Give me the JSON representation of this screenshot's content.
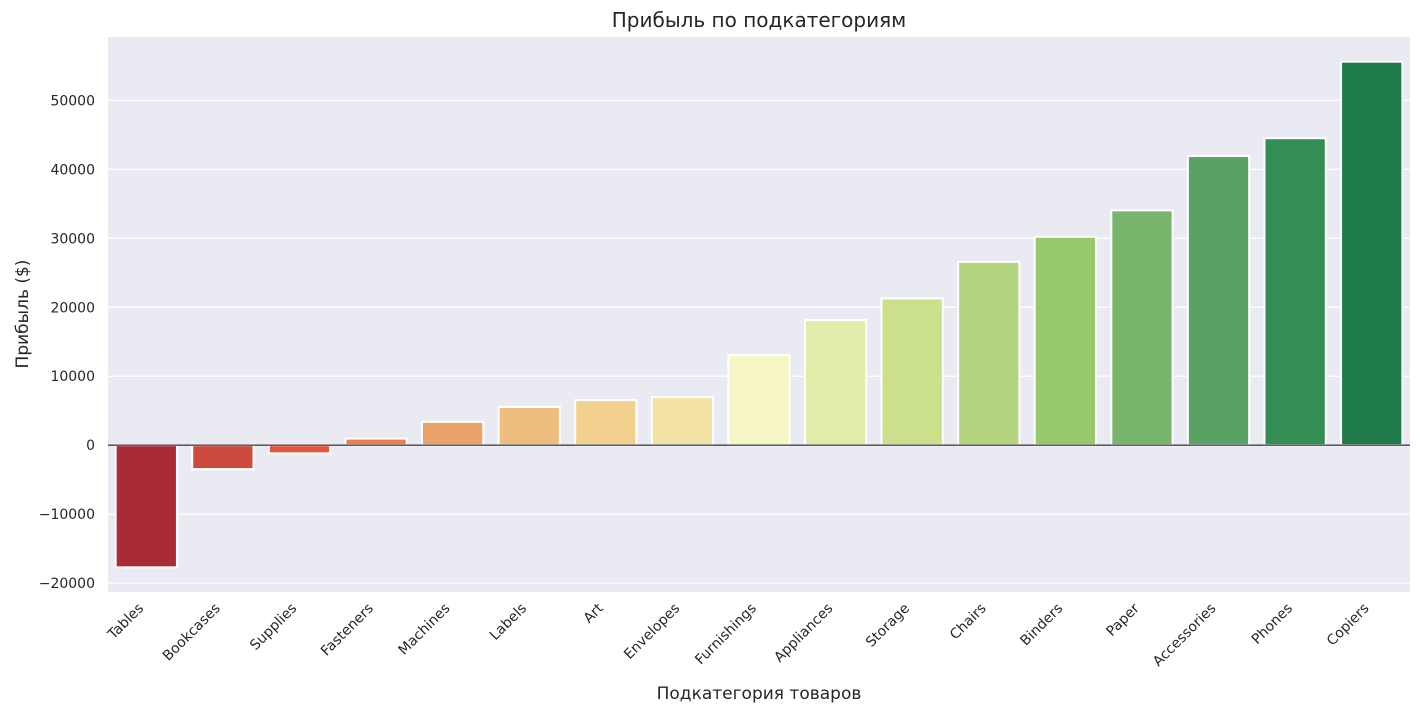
{
  "chart_data": {
    "type": "bar",
    "title": "Прибыль по подкатегориям",
    "xlabel": "Подкатегория товаров",
    "ylabel": "Прибыль ($)",
    "ylim": [
      -21300,
      59200
    ],
    "yticks": [
      -20000,
      -10000,
      0,
      10000,
      20000,
      30000,
      40000,
      50000
    ],
    "grid": true,
    "legend": "none",
    "categories": [
      "Tables",
      "Bookcases",
      "Supplies",
      "Fasteners",
      "Machines",
      "Labels",
      "Art",
      "Envelopes",
      "Furnishings",
      "Appliances",
      "Storage",
      "Chairs",
      "Binders",
      "Paper",
      "Accessories",
      "Phones",
      "Copiers"
    ],
    "values": [
      -17725,
      -3473,
      -1189,
      950,
      3385,
      5546,
      6528,
      6964,
      13059,
      18138,
      21279,
      26590,
      30222,
      34054,
      41937,
      44516,
      55618
    ],
    "colors": [
      "#A92B36",
      "#CC4A3E",
      "#E2573E",
      "#F07E4B",
      "#E9A267",
      "#EDBE7D",
      "#F2D08E",
      "#F2E3A4",
      "#F6F7C5",
      "#E2EBA8",
      "#CBE08B",
      "#B3D47F",
      "#97C86C",
      "#78B56C",
      "#58A263",
      "#338E53",
      "#1E7A49"
    ]
  }
}
